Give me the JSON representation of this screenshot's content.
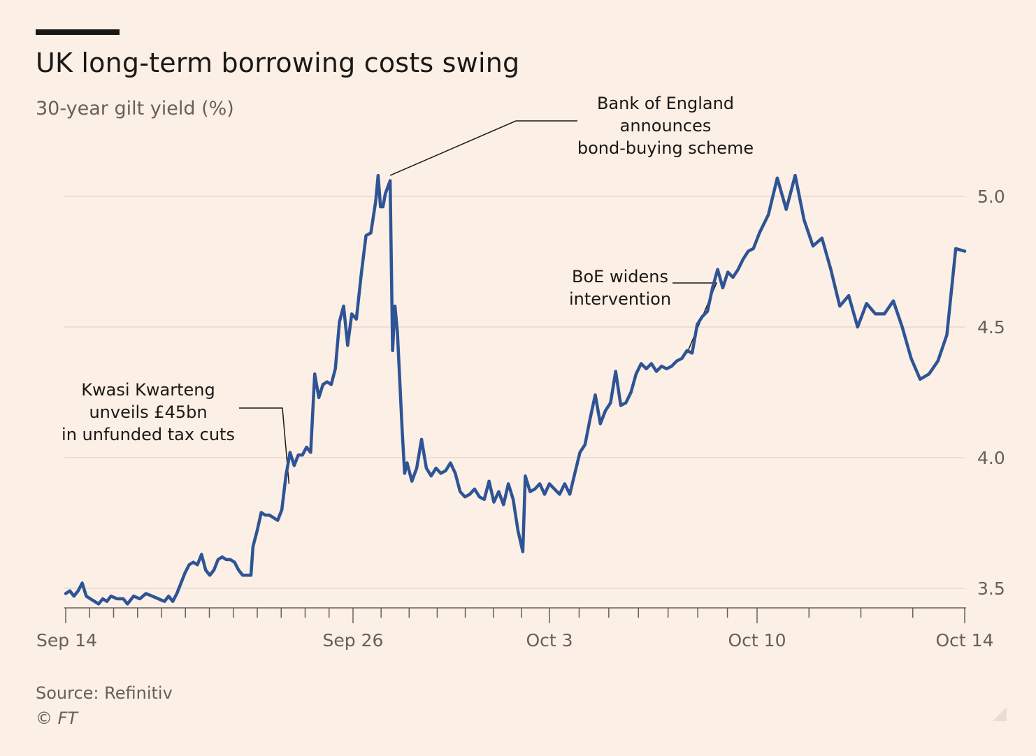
{
  "header": {
    "title": "UK long-term borrowing costs swing",
    "subtitle": "30-year gilt yield (%)"
  },
  "footer": {
    "source": "Source: Refinitiv",
    "credit": "© FT"
  },
  "colors": {
    "background": "#fcefe5",
    "line": "#2e5496",
    "grid": "#e6d9ce",
    "text": "#1a1817",
    "muted": "#66605c"
  },
  "chart_data": {
    "type": "line",
    "title": "UK long-term borrowing costs swing",
    "subtitle": "30-year gilt yield (%)",
    "ylim": [
      3.43,
      5.1
    ],
    "y_ticks": [
      3.5,
      4.0,
      4.5,
      5.0
    ],
    "y_tick_labels": [
      "3.5",
      "4.0",
      "4.5",
      "5.0"
    ],
    "y_axis_side": "right",
    "grid": true,
    "x_ticks": [
      {
        "label": "Sep 14",
        "day": 0
      },
      {
        "label": "Sep 26",
        "day": 12
      },
      {
        "label": "Oct 3",
        "day": 19
      },
      {
        "label": "Oct 10",
        "day": 26
      },
      {
        "label": "Oct 14",
        "day": 30
      }
    ],
    "series": [
      {
        "name": "",
        "x_unit": "days after Sep 14",
        "points": [
          [
            0.0,
            3.48
          ],
          [
            0.2,
            3.49
          ],
          [
            0.4,
            3.47
          ],
          [
            0.6,
            3.49
          ],
          [
            0.8,
            3.52
          ],
          [
            1.0,
            3.47
          ],
          [
            1.2,
            3.46
          ],
          [
            1.4,
            3.45
          ],
          [
            1.6,
            3.44
          ],
          [
            1.8,
            3.46
          ],
          [
            2.0,
            3.45
          ],
          [
            2.2,
            3.47
          ],
          [
            2.5,
            3.46
          ],
          [
            2.8,
            3.46
          ],
          [
            3.0,
            3.44
          ],
          [
            3.3,
            3.47
          ],
          [
            3.6,
            3.46
          ],
          [
            3.9,
            3.48
          ],
          [
            4.2,
            3.47
          ],
          [
            4.5,
            3.46
          ],
          [
            4.8,
            3.45
          ],
          [
            5.0,
            3.47
          ],
          [
            5.2,
            3.45
          ],
          [
            5.4,
            3.48
          ],
          [
            5.6,
            3.52
          ],
          [
            5.8,
            3.56
          ],
          [
            6.0,
            3.59
          ],
          [
            6.2,
            3.6
          ],
          [
            6.4,
            3.59
          ],
          [
            6.6,
            3.63
          ],
          [
            6.8,
            3.57
          ],
          [
            7.0,
            3.55
          ],
          [
            7.2,
            3.57
          ],
          [
            7.4,
            3.61
          ],
          [
            7.6,
            3.62
          ],
          [
            7.8,
            3.61
          ],
          [
            8.0,
            3.61
          ],
          [
            8.2,
            3.6
          ],
          [
            8.4,
            3.57
          ],
          [
            8.6,
            3.55
          ],
          [
            8.8,
            3.55
          ],
          [
            9.0,
            3.55
          ],
          [
            9.1,
            3.66
          ],
          [
            9.3,
            3.72
          ],
          [
            9.5,
            3.79
          ],
          [
            9.7,
            3.78
          ],
          [
            9.9,
            3.78
          ],
          [
            10.1,
            3.77
          ],
          [
            10.3,
            3.76
          ],
          [
            10.5,
            3.8
          ],
          [
            10.7,
            3.93
          ],
          [
            10.9,
            4.02
          ],
          [
            11.1,
            3.97
          ],
          [
            11.3,
            4.01
          ],
          [
            11.5,
            4.01
          ],
          [
            11.7,
            4.04
          ],
          [
            11.9,
            4.02
          ],
          [
            12.1,
            4.32
          ],
          [
            12.3,
            4.23
          ],
          [
            12.5,
            4.28
          ],
          [
            12.7,
            4.29
          ],
          [
            12.9,
            4.28
          ],
          [
            13.1,
            4.34
          ],
          [
            13.3,
            4.52
          ],
          [
            13.5,
            4.58
          ],
          [
            13.7,
            4.43
          ],
          [
            13.9,
            4.55
          ],
          [
            14.1,
            4.53
          ],
          [
            14.3,
            4.7
          ],
          [
            14.5,
            4.85
          ],
          [
            14.7,
            4.86
          ],
          [
            14.9,
            4.98
          ],
          [
            15.0,
            5.08
          ],
          [
            15.1,
            4.96
          ],
          [
            15.2,
            4.96
          ],
          [
            15.3,
            5.01
          ],
          [
            15.5,
            5.06
          ],
          [
            15.6,
            4.41
          ],
          [
            15.7,
            4.58
          ],
          [
            15.8,
            4.48
          ],
          [
            16.0,
            4.1
          ],
          [
            16.1,
            3.94
          ],
          [
            16.2,
            3.98
          ],
          [
            16.4,
            3.91
          ],
          [
            16.6,
            3.96
          ],
          [
            16.8,
            4.07
          ],
          [
            17.0,
            3.96
          ],
          [
            17.2,
            3.93
          ],
          [
            17.4,
            3.96
          ],
          [
            17.6,
            3.94
          ],
          [
            17.8,
            3.95
          ],
          [
            18.0,
            3.98
          ],
          [
            18.2,
            3.94
          ],
          [
            18.4,
            3.87
          ],
          [
            18.6,
            3.85
          ],
          [
            18.8,
            3.86
          ],
          [
            19.0,
            3.88
          ],
          [
            19.2,
            3.85
          ],
          [
            19.4,
            3.84
          ],
          [
            19.6,
            3.91
          ],
          [
            19.8,
            3.83
          ],
          [
            20.0,
            3.87
          ],
          [
            20.2,
            3.82
          ],
          [
            20.4,
            3.9
          ],
          [
            20.6,
            3.84
          ],
          [
            20.8,
            3.72
          ],
          [
            21.0,
            3.64
          ],
          [
            21.1,
            3.93
          ],
          [
            21.3,
            3.87
          ],
          [
            21.5,
            3.88
          ],
          [
            21.7,
            3.9
          ],
          [
            21.9,
            3.86
          ],
          [
            22.1,
            3.9
          ],
          [
            22.3,
            3.88
          ],
          [
            22.5,
            3.86
          ],
          [
            22.7,
            3.9
          ],
          [
            22.9,
            3.86
          ],
          [
            23.1,
            3.94
          ],
          [
            23.3,
            4.02
          ],
          [
            23.5,
            4.05
          ],
          [
            23.7,
            4.15
          ],
          [
            23.9,
            4.24
          ],
          [
            24.1,
            4.13
          ],
          [
            24.3,
            4.18
          ],
          [
            24.5,
            4.21
          ],
          [
            24.7,
            4.33
          ],
          [
            24.9,
            4.2
          ],
          [
            25.1,
            4.21
          ],
          [
            25.3,
            4.25
          ],
          [
            25.5,
            4.32
          ],
          [
            25.7,
            4.36
          ],
          [
            25.9,
            4.34
          ],
          [
            26.1,
            4.36
          ],
          [
            26.3,
            4.33
          ],
          [
            26.5,
            4.35
          ],
          [
            26.7,
            4.34
          ],
          [
            26.9,
            4.35
          ],
          [
            27.1,
            4.37
          ],
          [
            27.3,
            4.38
          ],
          [
            27.5,
            4.41
          ],
          [
            27.7,
            4.4
          ],
          [
            27.9,
            4.51
          ],
          [
            28.1,
            4.54
          ],
          [
            28.3,
            4.56
          ],
          [
            28.5,
            4.65
          ],
          [
            28.7,
            4.72
          ],
          [
            28.9,
            4.65
          ],
          [
            29.1,
            4.71
          ],
          [
            29.3,
            4.69
          ],
          [
            29.5,
            4.72
          ],
          [
            29.7,
            4.76
          ],
          [
            29.9,
            4.79
          ],
          [
            30.1,
            4.8
          ],
          [
            30.3,
            4.86
          ],
          [
            30.5,
            4.93
          ],
          [
            30.7,
            5.07
          ],
          [
            30.9,
            4.95
          ],
          [
            31.1,
            5.08
          ],
          [
            31.3,
            4.91
          ],
          [
            31.5,
            4.81
          ],
          [
            31.7,
            4.84
          ],
          [
            31.9,
            4.72
          ],
          [
            32.1,
            4.58
          ],
          [
            32.3,
            4.62
          ],
          [
            32.5,
            4.5
          ],
          [
            32.7,
            4.59
          ],
          [
            32.9,
            4.55
          ],
          [
            33.1,
            4.55
          ],
          [
            33.3,
            4.6
          ],
          [
            33.5,
            4.5
          ],
          [
            33.7,
            4.38
          ],
          [
            33.9,
            4.3
          ],
          [
            34.1,
            4.32
          ],
          [
            34.3,
            4.37
          ],
          [
            34.5,
            4.47
          ],
          [
            34.7,
            4.8
          ],
          [
            34.9,
            4.79
          ]
        ]
      }
    ],
    "annotations": [
      {
        "lines": [
          "Kwasi Kwarteng",
          "unveils £45bn",
          "in unfunded tax cuts"
        ],
        "day": 10.85,
        "value": 3.9
      },
      {
        "lines": [
          "Bank of England",
          "announces",
          "bond-buying scheme"
        ],
        "day": 15.5,
        "value": 5.08
      },
      {
        "lines": [
          "BoE widens",
          "intervention"
        ],
        "day": 27.5,
        "value": 4.4
      }
    ]
  }
}
